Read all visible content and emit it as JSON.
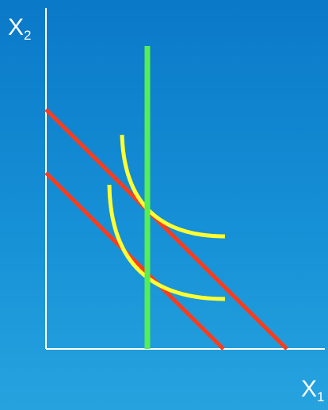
{
  "axes": {
    "y_label": {
      "main": "X",
      "sub": "2"
    },
    "x_label": {
      "main": "X",
      "sub": "1"
    }
  },
  "colors": {
    "axis": "#ffffff",
    "budget_lines": "#ff3b1a",
    "indifference_curves": "#ffff33",
    "vertical_line": "#55ee55"
  }
}
